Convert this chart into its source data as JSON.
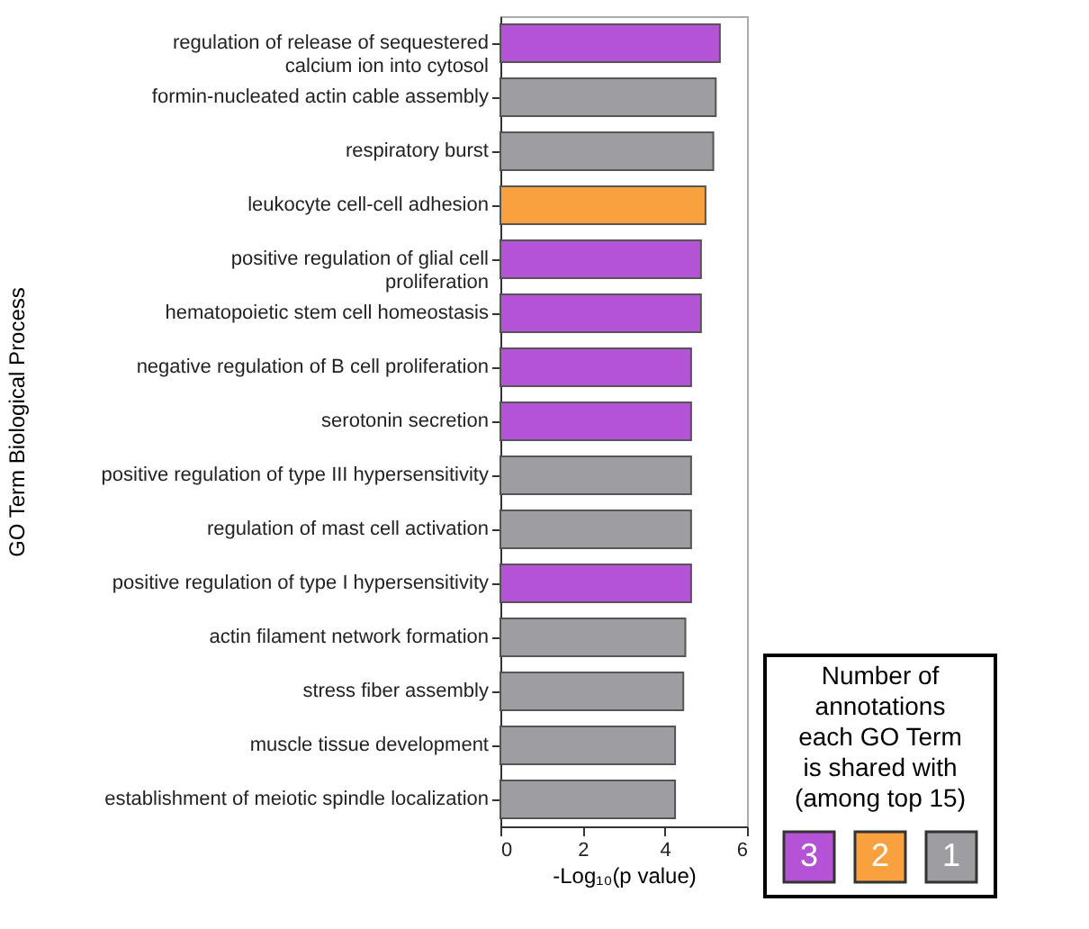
{
  "chart_data": {
    "type": "bar",
    "orientation": "horizontal",
    "categories": [
      "regulation of release of sequestered\ncalcium ion into cytosol",
      "formin-nucleated actin cable assembly",
      "respiratory burst",
      "leukocyte cell-cell adhesion",
      "positive regulation of glial cell\nproliferation",
      "hematopoietic stem cell homeostasis",
      "negative regulation of B cell proliferation",
      "serotonin secretion",
      "positive regulation of type III hypersensitivity",
      "regulation of mast cell activation",
      "positive regulation of type I hypersensitivity",
      "actin filament network formation",
      "stress fiber assembly",
      "muscle tissue development",
      "establishment of meiotic spindle localization"
    ],
    "series": [
      {
        "name": "3",
        "color": "#b553d6",
        "values": [
          5.34,
          null,
          null,
          null,
          4.88,
          4.88,
          4.64,
          4.64,
          null,
          null,
          4.64,
          null,
          null,
          null,
          null
        ]
      },
      {
        "name": "2",
        "color": "#f9a03f",
        "values": [
          null,
          null,
          null,
          4.99,
          null,
          null,
          null,
          null,
          null,
          null,
          null,
          null,
          null,
          null,
          null
        ]
      },
      {
        "name": "1",
        "color": "#9d9da2",
        "values": [
          null,
          5.24,
          5.18,
          null,
          null,
          null,
          null,
          null,
          4.64,
          4.64,
          null,
          4.5,
          4.45,
          4.25,
          4.25
        ]
      }
    ],
    "xlim": [
      0,
      6
    ],
    "xticks": [
      0,
      2,
      4,
      6
    ],
    "xlabel": "-Log₁₀(p value)",
    "ylabel": "GO Term Biological Process",
    "legend_title": "Number of annotations each GO Term is shared with (among top 15)",
    "legend": "right",
    "grid": false
  }
}
